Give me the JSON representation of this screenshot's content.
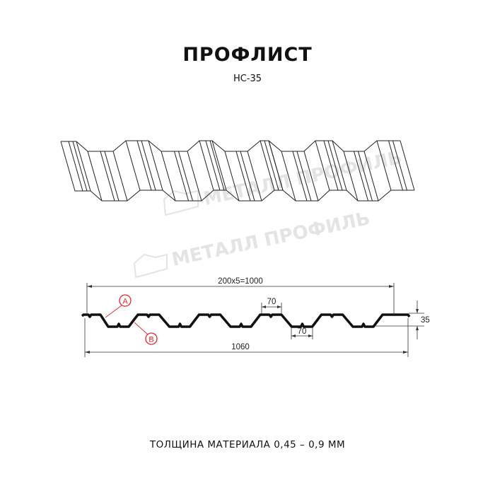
{
  "title": "ПРОФЛИСТ",
  "subtitle": "НС-35",
  "footer": "ТОЛЩИНА МАТЕРИАЛА 0,45 – 0,9 ММ",
  "watermark": "МЕТАЛЛ ПРОФИЛЬ",
  "dimensions": {
    "pitch_total": "200x5=1000",
    "top_width": "70",
    "bottom_width": "70",
    "height": "35",
    "overall_width": "1060"
  },
  "markers": {
    "a": "A",
    "b": "B"
  },
  "colors": {
    "profile": "#111111",
    "marker": "#e0262b",
    "watermark": "#e4e4e4"
  }
}
